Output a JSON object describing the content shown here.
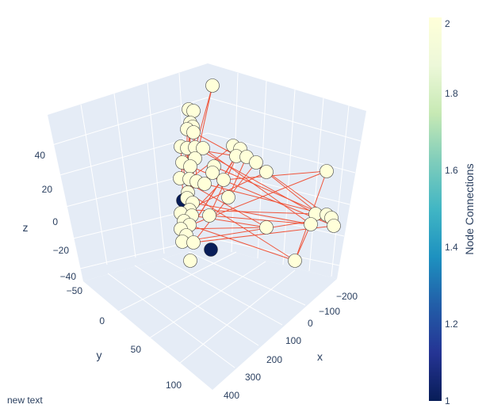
{
  "chart_data": {
    "type": "scatter3d",
    "axes": {
      "x": {
        "title": "x",
        "ticks": [
          "−200",
          "−100",
          "0",
          "100",
          "200",
          "300",
          "400"
        ]
      },
      "y": {
        "title": "y",
        "ticks": [
          "−50",
          "0",
          "50",
          "100"
        ]
      },
      "z": {
        "title": "z",
        "ticks": [
          "−40",
          "−20",
          "0",
          "20",
          "40"
        ]
      }
    },
    "colorbar": {
      "title": "Node Connections",
      "ticks": [
        "1",
        "1.2",
        "1.4",
        "1.6",
        "1.8",
        "2"
      ],
      "range": [
        1,
        2
      ],
      "colorscale": [
        "#081d58",
        "#253494",
        "#225ea8",
        "#1d91c0",
        "#41b6c4",
        "#7fcdbb",
        "#c7e9b4",
        "#edf8d9",
        "#ffffd9"
      ]
    },
    "edge_color": "#ef553b",
    "background": "#e5ecf6",
    "annotation": "new text"
  }
}
